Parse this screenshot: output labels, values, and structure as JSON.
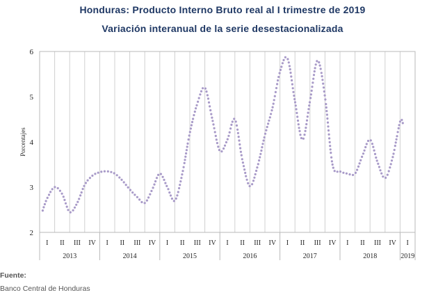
{
  "chart_data": {
    "type": "line",
    "title": "Honduras: Producto Interno Bruto real al I trimestre de 2019",
    "subtitle": "Variación interanual de la serie desestacionalizada",
    "ylabel": "Porcentajes",
    "xlabel": "",
    "ylim": [
      2,
      6
    ],
    "yticks": [
      "2",
      "3",
      "4",
      "5",
      "6"
    ],
    "grid": "vertical",
    "line_style": "dotted",
    "color": "#a89ac8",
    "quarter_labels": [
      "I",
      "II",
      "III",
      "IV",
      "I",
      "II",
      "III",
      "IV",
      "I",
      "II",
      "III",
      "IV",
      "I",
      "II",
      "III",
      "IV",
      "I",
      "II",
      "III",
      "IV",
      "I",
      "II",
      "III",
      "IV",
      "I"
    ],
    "years": [
      {
        "label": "2013",
        "quarters": 4
      },
      {
        "label": "2014",
        "quarters": 4
      },
      {
        "label": "2015",
        "quarters": 4
      },
      {
        "label": "2016",
        "quarters": 4
      },
      {
        "label": "2017",
        "quarters": 4
      },
      {
        "label": "2018",
        "quarters": 4
      },
      {
        "label": "2019",
        "quarters": 1
      }
    ],
    "series": [
      {
        "x": [
          0.2,
          0.5,
          1.0,
          1.5,
          2.0,
          2.5,
          3.0,
          3.5,
          4.0,
          4.5,
          5.0,
          5.5,
          6.0,
          6.5,
          7.0,
          7.5,
          8.0,
          8.5,
          9.0,
          9.5,
          10.0,
          10.5,
          11.0,
          11.5,
          12.0,
          12.5,
          13.0,
          13.5,
          14.0,
          14.5,
          15.0,
          15.5,
          16.0,
          16.5,
          17.0,
          17.5,
          18.0,
          18.5,
          19.0,
          19.5,
          20.0,
          20.5,
          21.0,
          21.5,
          22.0,
          22.5,
          23.0,
          23.5,
          24.0,
          24.2
        ],
        "y": [
          2.48,
          2.75,
          3.0,
          2.85,
          2.45,
          2.65,
          3.05,
          3.25,
          3.33,
          3.35,
          3.3,
          3.15,
          2.95,
          2.78,
          2.65,
          2.95,
          3.3,
          3.0,
          2.7,
          3.3,
          4.2,
          4.85,
          5.2,
          4.5,
          3.8,
          4.05,
          4.5,
          3.6,
          3.02,
          3.45,
          4.15,
          4.75,
          5.55,
          5.85,
          4.9,
          4.05,
          4.9,
          5.8,
          5.0,
          3.5,
          3.35,
          3.3,
          3.3,
          3.7,
          4.05,
          3.55,
          3.2,
          3.65,
          4.45,
          4.4
        ]
      }
    ]
  },
  "source": {
    "label": "Fuente:",
    "text": "Banco Central de Honduras"
  }
}
